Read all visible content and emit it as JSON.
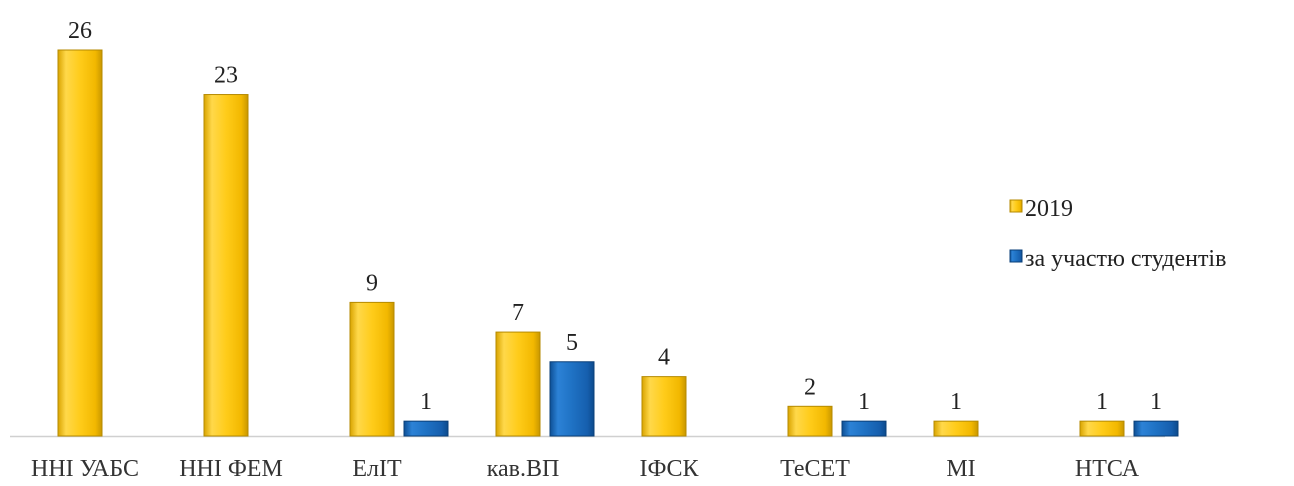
{
  "chart_data": {
    "type": "bar",
    "categories": [
      "ННІ УАБС",
      "ННІ ФЕМ",
      "ЕлІТ",
      "кав.ВП",
      "ІФСК",
      "ТеСЕТ",
      "МІ",
      "НТСА"
    ],
    "series": [
      {
        "name": "2019",
        "values": [
          26,
          23,
          9,
          7,
          4,
          2,
          1,
          1
        ],
        "color": "#f5c518"
      },
      {
        "name": "за участю студентів",
        "values": [
          null,
          null,
          1,
          5,
          null,
          1,
          null,
          1
        ],
        "color": "#1f6fbf"
      }
    ],
    "ylim": [
      0,
      26
    ],
    "grid": false,
    "legend_position": "right"
  }
}
